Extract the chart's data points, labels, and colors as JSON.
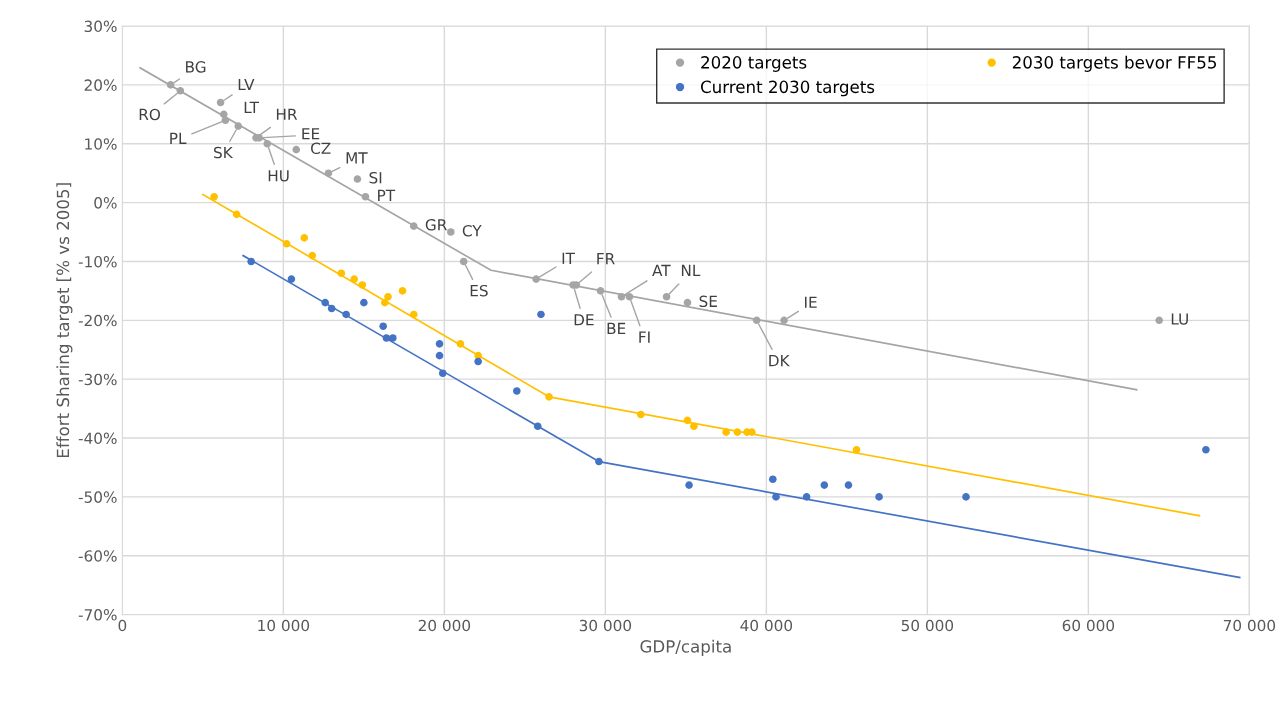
{
  "chart_data": {
    "type": "scatter",
    "xlabel": "GDP/capita",
    "ylabel": "Effort Sharing target [% vs 2005]",
    "xlim": [
      0,
      70000
    ],
    "ylim": [
      -70,
      30
    ],
    "xticks": [
      0,
      {
        "value": 10000,
        "label": "10 000"
      },
      {
        "value": 20000,
        "label": "20 000"
      },
      {
        "value": 30000,
        "label": "30 000"
      },
      {
        "value": 40000,
        "label": "40 000"
      },
      {
        "value": 50000,
        "label": "50 000"
      },
      {
        "value": 60000,
        "label": "60 000"
      },
      {
        "value": 70000,
        "label": "70 000"
      }
    ],
    "yticks": [
      {
        "value": -70,
        "label": "-70%"
      },
      {
        "value": -60,
        "label": "-60%"
      },
      {
        "value": -50,
        "label": "-50%"
      },
      {
        "value": -40,
        "label": "-40%"
      },
      {
        "value": -30,
        "label": "-30%"
      },
      {
        "value": -20,
        "label": "-20%"
      },
      {
        "value": -10,
        "label": "-10%"
      },
      {
        "value": 0,
        "label": "0%"
      },
      {
        "value": 10,
        "label": "10%"
      },
      {
        "value": 20,
        "label": "20%"
      },
      {
        "value": 30,
        "label": "30%"
      }
    ],
    "grid": true,
    "legend": "top right",
    "series": [
      {
        "name": "2020 targets",
        "marker": "circle",
        "color": "#a5a5a5",
        "x": [
          3000,
          3600,
          6100,
          6300,
          6400,
          7200,
          8300,
          8500,
          9000,
          10800,
          12800,
          14600,
          15100,
          18100,
          20400,
          21200,
          25700,
          28000,
          28200,
          29700,
          31000,
          31500,
          33800,
          35100,
          39400,
          41100,
          64400
        ],
        "values": [
          20,
          19,
          17,
          15,
          14,
          13,
          11,
          11,
          10,
          9,
          5,
          4,
          1,
          -4,
          -5,
          -10,
          -13,
          -14,
          -14,
          -15,
          -16,
          -16,
          -16,
          -17,
          -20,
          -20,
          -20
        ]
      },
      {
        "name": "2030 targets bevor FF55",
        "marker": "circle",
        "color": "#ffc000",
        "x": [
          5700,
          7100,
          10200,
          11300,
          11800,
          13600,
          14400,
          14900,
          16300,
          16500,
          17400,
          18100,
          21000,
          22100,
          26500,
          32200,
          35100,
          35500,
          37500,
          38200,
          38800,
          39100,
          45600
        ],
        "values": [
          1,
          -2,
          -7,
          -6,
          -9,
          -12,
          -13,
          -14,
          -17,
          -16,
          -15,
          -19,
          -24,
          -26,
          -33,
          -36,
          -37,
          -38,
          -39,
          -39,
          -39,
          -39,
          -42
        ]
      },
      {
        "name": "Current 2030 targets",
        "marker": "circle",
        "color": "#4472c4",
        "x": [
          8000,
          10500,
          12600,
          13000,
          13900,
          15000,
          16200,
          16400,
          16800,
          19700,
          19700,
          19900,
          22100,
          24500,
          26000,
          25800,
          29600,
          35200,
          40400,
          40600,
          42500,
          43600,
          45100,
          47000,
          52400,
          67300
        ],
        "values": [
          -10,
          -13,
          -17,
          -18,
          -19,
          -17,
          -21,
          -23,
          -23,
          -24,
          -26,
          -29,
          -27,
          -32,
          -19,
          -38,
          -44,
          -48,
          -47,
          -50,
          -50,
          -48,
          -48,
          -50,
          -50,
          -42
        ]
      },
      {
        "type": "line",
        "marker": "none",
        "color": "#a5a5a5",
        "x": [
          1100,
          22900,
          63000
        ],
        "values": [
          22.9,
          -11.5,
          -31.8
        ]
      },
      {
        "type": "line",
        "marker": "none",
        "color": "#ffc000",
        "x": [
          5000,
          26500,
          66900
        ],
        "values": [
          1.4,
          -33,
          -53.2
        ]
      },
      {
        "type": "line",
        "marker": "none",
        "color": "#4472c4",
        "x": [
          7500,
          29600,
          69400
        ],
        "values": [
          -9,
          -44,
          -63.7
        ]
      }
    ],
    "annotations": [
      {
        "text": "BG",
        "x": 3000,
        "y": 20
      },
      {
        "text": "RO",
        "x": 3600,
        "y": 19
      },
      {
        "text": "LV",
        "x": 6100,
        "y": 17
      },
      {
        "text": "LT",
        "x": 6300,
        "y": 15
      },
      {
        "text": "PL",
        "x": 6400,
        "y": 14
      },
      {
        "text": "SK",
        "x": 7200,
        "y": 13
      },
      {
        "text": "HR",
        "x": 8300,
        "y": 11
      },
      {
        "text": "EE",
        "x": 8500,
        "y": 11
      },
      {
        "text": "HU",
        "x": 9000,
        "y": 10
      },
      {
        "text": "CZ",
        "x": 10800,
        "y": 9
      },
      {
        "text": "MT",
        "x": 12800,
        "y": 5
      },
      {
        "text": "SI",
        "x": 14600,
        "y": 4
      },
      {
        "text": "PT",
        "x": 15100,
        "y": 1
      },
      {
        "text": "GR",
        "x": 18100,
        "y": -4
      },
      {
        "text": "CY",
        "x": 20400,
        "y": -5
      },
      {
        "text": "ES",
        "x": 21200,
        "y": -10
      },
      {
        "text": "IT",
        "x": 25700,
        "y": -13
      },
      {
        "text": "DE",
        "x": 28000,
        "y": -14
      },
      {
        "text": "FR",
        "x": 28200,
        "y": -14
      },
      {
        "text": "BE",
        "x": 29700,
        "y": -15
      },
      {
        "text": "AT",
        "x": 31000,
        "y": -16
      },
      {
        "text": "FI",
        "x": 31500,
        "y": -16
      },
      {
        "text": "NL",
        "x": 33800,
        "y": -16
      },
      {
        "text": "SE",
        "x": 35100,
        "y": -17
      },
      {
        "text": "DK",
        "x": 39400,
        "y": -20
      },
      {
        "text": "IE",
        "x": 41100,
        "y": -20
      },
      {
        "text": "LU",
        "x": 64400,
        "y": -20
      }
    ]
  }
}
